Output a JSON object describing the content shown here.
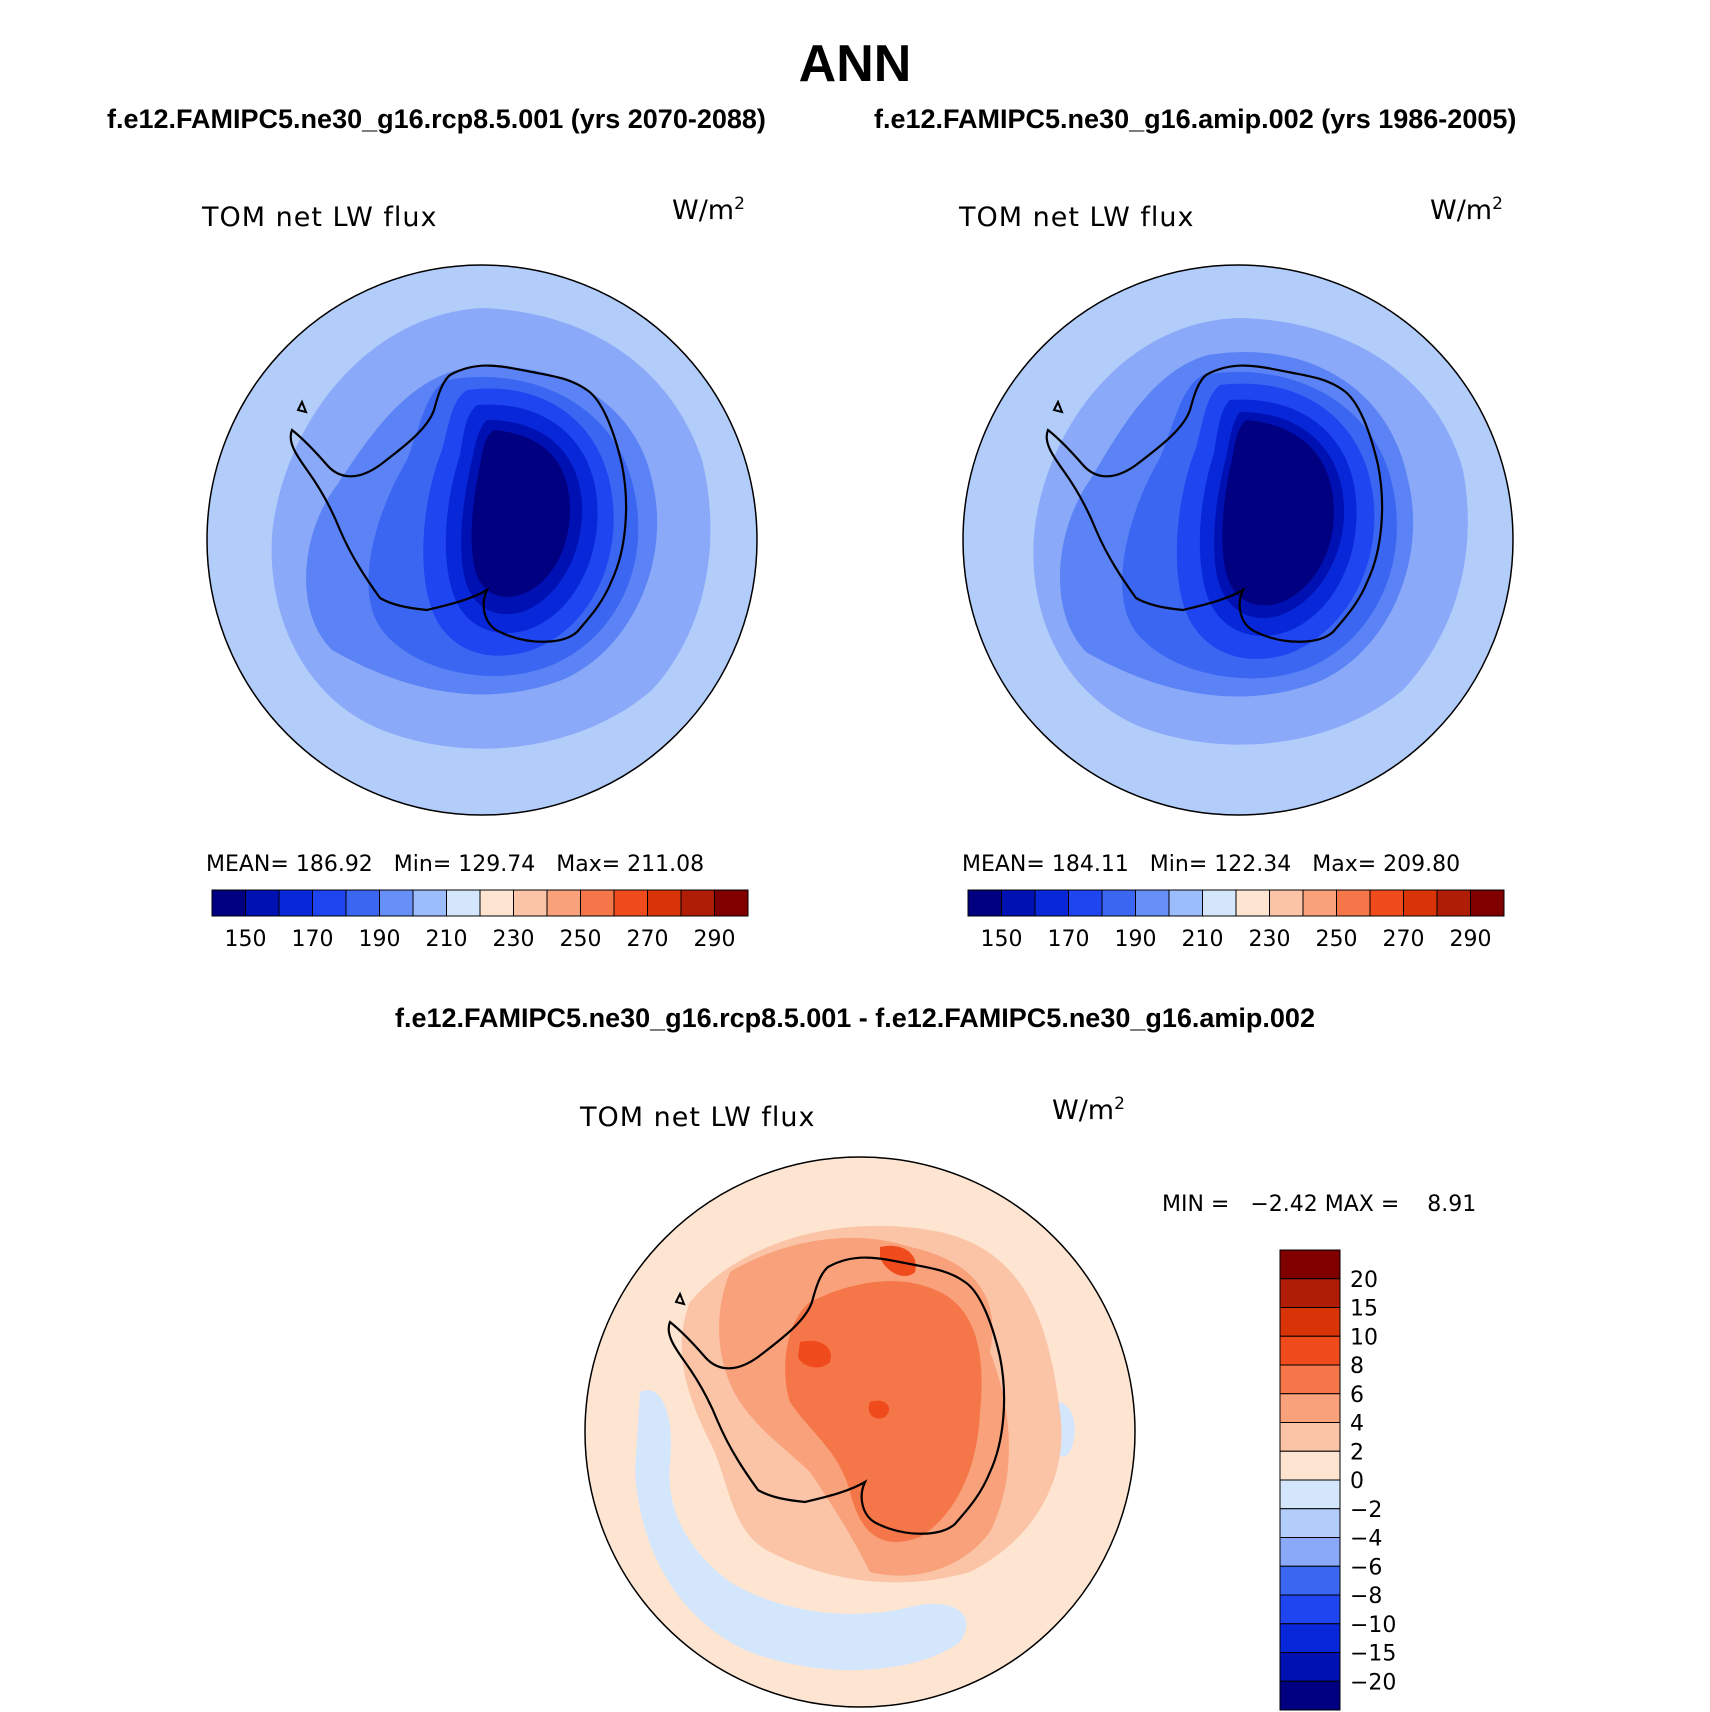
{
  "figure": {
    "title": "ANN",
    "case1_title": "f.e12.FAMIPC5.ne30_g16.rcp8.5.001 (yrs 2070-2088)",
    "case2_title": "f.e12.FAMIPC5.ne30_g16.amip.002 (yrs 1986-2005)",
    "diff_title": "f.e12.FAMIPC5.ne30_g16.rcp8.5.001 - f.e12.FAMIPC5.ne30_g16.amip.002"
  },
  "panels": [
    {
      "variable": "TOM net LW flux",
      "units": "W/m",
      "units_exp": "2",
      "mean_label": "MEAN=",
      "mean": "186.92",
      "min_label": "Min=",
      "min": "129.74",
      "max_label": "Max=",
      "max": "211.08"
    },
    {
      "variable": "TOM net LW flux",
      "units": "W/m",
      "units_exp": "2",
      "mean_label": "MEAN=",
      "mean": "184.11",
      "min_label": "Min=",
      "min": "122.34",
      "max_label": "Max=",
      "max": "209.80"
    }
  ],
  "diff_panel": {
    "variable": "TOM net LW flux",
    "units": "W/m",
    "units_exp": "2",
    "stats": "MIN =   −2.42 MAX =    8.91"
  },
  "chart_data": [
    {
      "type": "map",
      "projection": "south polar stereographic",
      "title": "TOM net LW flux",
      "units": "W/m2",
      "mean": 186.92,
      "min": 129.74,
      "max": 211.08,
      "colorbar": {
        "tick_labels": [
          "150",
          "170",
          "190",
          "210",
          "230",
          "250",
          "270",
          "290"
        ],
        "levels": [
          140,
          150,
          160,
          170,
          180,
          190,
          200,
          210,
          220,
          230,
          240,
          250,
          260,
          270,
          280,
          290,
          300
        ],
        "colors": [
          "#000080",
          "#0011b3",
          "#0727d8",
          "#1e45f0",
          "#3b66f2",
          "#6690f8",
          "#9cbdfc",
          "#d3e6fc",
          "#fde5d2",
          "#fbc4a6",
          "#f9a17a",
          "#f57648",
          "#f04b1c",
          "#d93408",
          "#b01d06",
          "#800000"
        ]
      }
    },
    {
      "type": "map",
      "projection": "south polar stereographic",
      "title": "TOM net LW flux",
      "units": "W/m2",
      "mean": 184.11,
      "min": 122.34,
      "max": 209.8,
      "colorbar": {
        "tick_labels": [
          "150",
          "170",
          "190",
          "210",
          "230",
          "250",
          "270",
          "290"
        ],
        "levels": [
          140,
          150,
          160,
          170,
          180,
          190,
          200,
          210,
          220,
          230,
          240,
          250,
          260,
          270,
          280,
          290,
          300
        ],
        "colors": [
          "#000080",
          "#0011b3",
          "#0727d8",
          "#1e45f0",
          "#3b66f2",
          "#6690f8",
          "#9cbdfc",
          "#d3e6fc",
          "#fde5d2",
          "#fbc4a6",
          "#f9a17a",
          "#f57648",
          "#f04b1c",
          "#d93408",
          "#b01d06",
          "#800000"
        ]
      }
    },
    {
      "type": "map",
      "projection": "south polar stereographic",
      "title": "TOM net LW flux",
      "units": "W/m2",
      "min": -2.42,
      "max": 8.91,
      "colorbar": {
        "tick_labels": [
          "20",
          "15",
          "10",
          "8",
          "6",
          "4",
          "2",
          "0",
          "−2",
          "−4",
          "−6",
          "−8",
          "−10",
          "−15",
          "−20"
        ],
        "colors_top_to_bottom": [
          "#800000",
          "#b01d06",
          "#d93408",
          "#f04b1c",
          "#f57648",
          "#f9a17a",
          "#fbc4a6",
          "#fde5d2",
          "#d3e6fc",
          "#b3cdfb",
          "#8aa9f8",
          "#3b66f2",
          "#1e45f0",
          "#0727d8",
          "#0011b3",
          "#000080"
        ]
      }
    }
  ]
}
